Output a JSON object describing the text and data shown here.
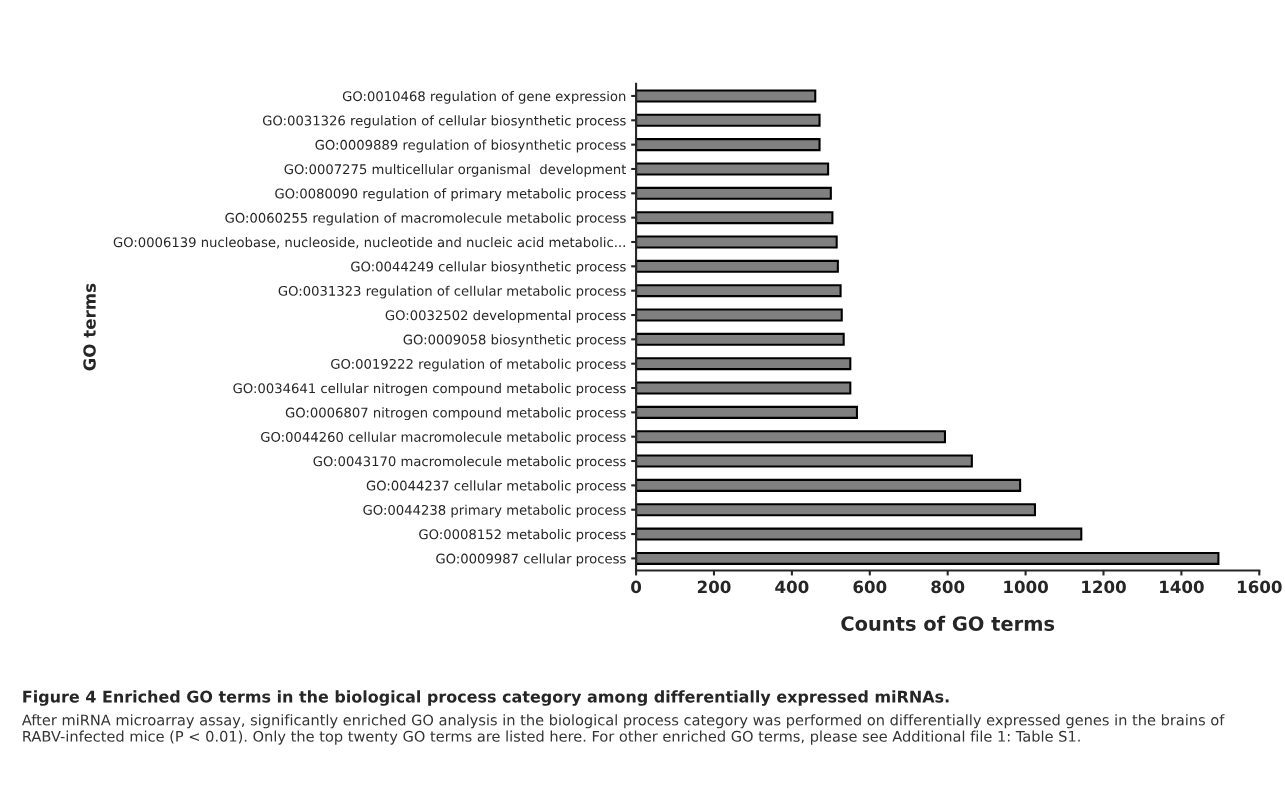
{
  "chart_data": {
    "type": "bar",
    "orientation": "horizontal",
    "title": "Figure 4 Enriched GO terms in the biological process category among differentially expressed miRNAs.",
    "annotations": [
      "After miRNA microarray assay, significantly enriched GO analysis in the biological process category was performed on differentially expressed genes in the brains of RABV-infected mice (P < 0.01). Only the top twenty GO terms are listed here. For other enriched GO terms, please see Additional file 1: Table S1."
    ],
    "xlabel": "Counts of GO terms",
    "ylabel": "GO terms",
    "categories": [
      "GO:0010468 regulation of gene expression",
      "GO:0031326 regulation of cellular biosynthetic process",
      "GO:0009889 regulation of biosynthetic process",
      "GO:0007275 multicellular organismal  development",
      "GO:0080090 regulation of primary metabolic process",
      "GO:0060255 regulation of macromolecule metabolic process",
      "GO:0006139 nucleobase, nucleoside, nucleotide and nucleic acid metabolic...",
      "GO:0044249 cellular biosynthetic process",
      "GO:0031323 regulation of cellular metabolic process",
      "GO:0032502 developmental process",
      "GO:0009058 biosynthetic process",
      "GO:0019222 regulation of metabolic process",
      "GO:0034641 cellular nitrogen compound metabolic process",
      "GO:0006807 nitrogen compound metabolic process",
      "GO:0044260 cellular macromolecule metabolic process",
      "GO:0043170 macromolecule metabolic process",
      "GO:0044237 cellular metabolic process",
      "GO:0044238 primary metabolic process",
      "GO:0008152 metabolic process",
      "GO:0009987 cellular process"
    ],
    "values": [
      460,
      471,
      471,
      493,
      500,
      504,
      515,
      518,
      525,
      528,
      533,
      550,
      550,
      567,
      793,
      862,
      986,
      1024,
      1143,
      1495
    ],
    "color": "#808080",
    "xlim": [
      0,
      1600
    ],
    "xticks": [
      0,
      200,
      400,
      600,
      800,
      1000,
      1200,
      1400,
      1600
    ],
    "grid": false,
    "legend": false
  }
}
